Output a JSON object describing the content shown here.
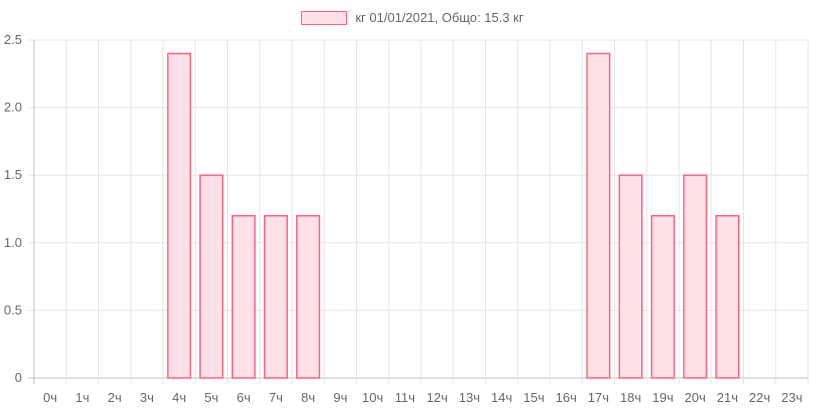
{
  "chart_data": {
    "type": "bar",
    "legend": "кг 01/01/2021, Общо: 15.3 кг",
    "categories": [
      "0ч",
      "1ч",
      "2ч",
      "3ч",
      "4ч",
      "5ч",
      "6ч",
      "7ч",
      "8ч",
      "9ч",
      "10ч",
      "11ч",
      "12ч",
      "13ч",
      "14ч",
      "15ч",
      "16ч",
      "17ч",
      "18ч",
      "19ч",
      "20ч",
      "21ч",
      "22ч",
      "23ч"
    ],
    "values": [
      0,
      0,
      0,
      0,
      2.4,
      1.5,
      1.2,
      1.2,
      1.2,
      0,
      0,
      0,
      0,
      0,
      0,
      0,
      0,
      2.4,
      1.5,
      1.2,
      1.5,
      1.2,
      0,
      0
    ],
    "ylim": [
      0,
      2.5
    ],
    "yticks": [
      "0",
      "0.5",
      "1.0",
      "1.5",
      "2.0",
      "2.5"
    ],
    "grid": true,
    "colors": {
      "bar_fill": "#ffe0e6",
      "bar_border": "#ff6384",
      "legend_border": "#ff6384",
      "grid": "#e5e5e5",
      "axis": "#bfbfbf"
    }
  }
}
